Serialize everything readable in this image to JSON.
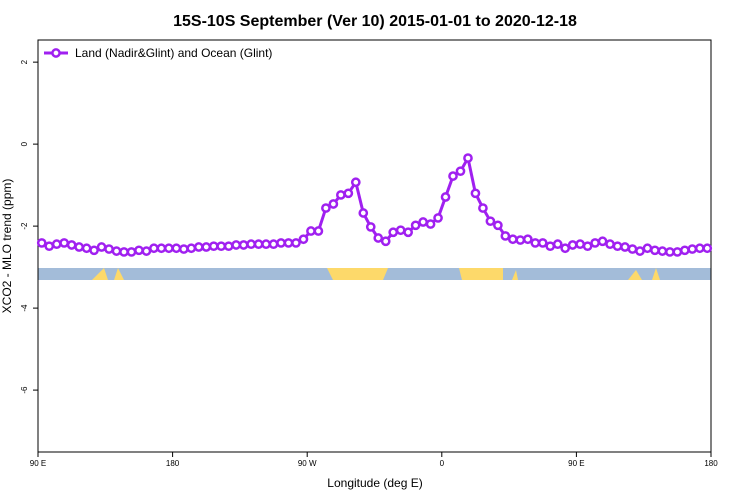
{
  "chart_data": {
    "type": "line",
    "title": "15S-10S September (Ver 10)   2015-01-01 to 2020-12-18",
    "x_label": "Longitude (deg E)",
    "y_label": "XCO2 - MLO trend (ppm)",
    "x": [
      92.5,
      97.5,
      102.5,
      107.5,
      112.5,
      117.5,
      122.5,
      127.5,
      132.5,
      137.5,
      142.5,
      147.5,
      152.5,
      157.5,
      162.5,
      167.5,
      172.5,
      177.5,
      182.5,
      187.5,
      192.5,
      197.5,
      202.5,
      207.5,
      212.5,
      217.5,
      222.5,
      227.5,
      232.5,
      237.5,
      242.5,
      247.5,
      252.5,
      257.5,
      262.5,
      267.5,
      272.5,
      277.5,
      282.5,
      287.5,
      292.5,
      297.5,
      302.5,
      307.5,
      312.5,
      317.5,
      322.5,
      327.5,
      332.5,
      337.5,
      342.5,
      347.5,
      352.5,
      357.5,
      362.5,
      367.5,
      372.5,
      377.5,
      382.5,
      387.5,
      392.5,
      397.5,
      402.5,
      407.5,
      412.5,
      417.5,
      422.5,
      427.5,
      432.5,
      437.5,
      442.5,
      447.5,
      452.5,
      457.5,
      462.5,
      467.5,
      472.5,
      477.5,
      482.5,
      487.5,
      492.5,
      497.5,
      502.5,
      507.5,
      512.5,
      517.5,
      522.5,
      527.5,
      532.5,
      537.5
    ],
    "series": [
      {
        "name": "Land (Nadir&Glint) and Ocean (Glint)",
        "color": "#a020f0",
        "values": [
          -2.41,
          -2.49,
          -2.44,
          -2.41,
          -2.46,
          -2.51,
          -2.54,
          -2.59,
          -2.51,
          -2.56,
          -2.61,
          -2.63,
          -2.63,
          -2.59,
          -2.61,
          -2.54,
          -2.54,
          -2.54,
          -2.54,
          -2.56,
          -2.54,
          -2.51,
          -2.51,
          -2.49,
          -2.49,
          -2.49,
          -2.46,
          -2.46,
          -2.44,
          -2.44,
          -2.44,
          -2.44,
          -2.41,
          -2.41,
          -2.41,
          -2.32,
          -2.12,
          -2.12,
          -1.56,
          -1.46,
          -1.24,
          -1.2,
          -0.93,
          -1.68,
          -2.02,
          -2.29,
          -2.37,
          -2.15,
          -2.1,
          -2.15,
          -1.98,
          -1.9,
          -1.95,
          -1.8,
          -1.29,
          -0.78,
          -0.66,
          -0.34,
          -1.2,
          -1.56,
          -1.88,
          -1.98,
          -2.24,
          -2.32,
          -2.34,
          -2.32,
          -2.41,
          -2.41,
          -2.49,
          -2.44,
          -2.54,
          -2.46,
          -2.44,
          -2.49,
          -2.41,
          -2.37,
          -2.44,
          -2.49,
          -2.51,
          -2.56,
          -2.61,
          -2.54,
          -2.59,
          -2.61,
          -2.63,
          -2.63,
          -2.59,
          -2.56,
          -2.54,
          -2.54
        ]
      }
    ],
    "xlim": [
      90,
      540
    ],
    "xticks": [
      {
        "value": 90,
        "label": "90 E"
      },
      180,
      {
        "value": 270,
        "label": "90 W"
      },
      {
        "value": 360,
        "label": "0"
      },
      {
        "value": 450,
        "label": "90 E"
      },
      {
        "value": 540,
        "label": "180"
      }
    ],
    "ylim": [
      -7.51,
      2.54
    ],
    "yticks": [
      2,
      0,
      -2,
      -4,
      -6
    ],
    "legend": "top-left"
  }
}
